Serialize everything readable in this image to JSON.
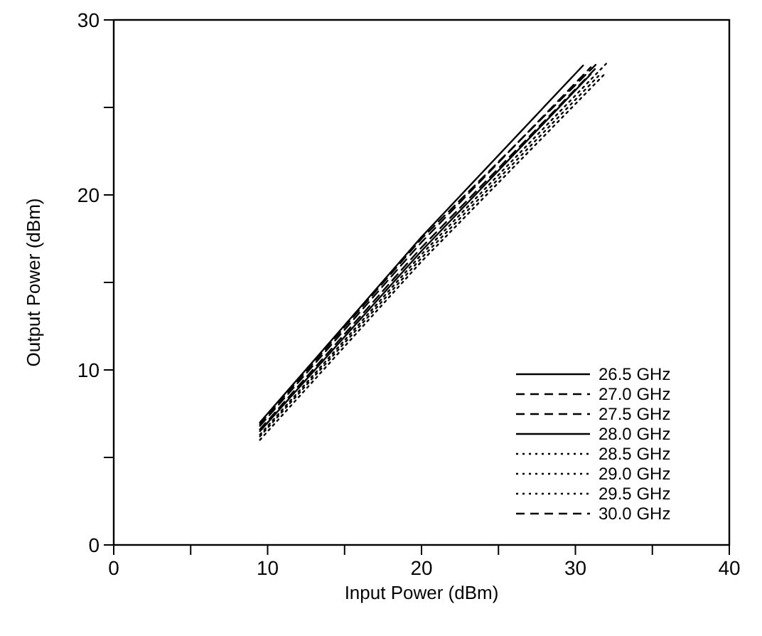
{
  "chart_data": {
    "type": "line",
    "xlabel": "Input Power (dBm)",
    "ylabel": "Output Power (dBm)",
    "xlim": [
      0,
      40
    ],
    "ylim": [
      0,
      30
    ],
    "xticks": [
      0,
      {
        "value": 5,
        "label": null
      },
      10,
      {
        "value": 15,
        "label": null
      },
      20,
      {
        "value": 25,
        "label": null
      },
      30,
      {
        "value": 35,
        "label": null
      },
      40
    ],
    "yticks": [
      0,
      {
        "value": 5,
        "label": null
      },
      10,
      {
        "value": 15,
        "label": null
      },
      20,
      {
        "value": 25,
        "label": null
      },
      30
    ],
    "grid": false,
    "legend": "bottom right",
    "marker": "none",
    "series": [
      {
        "name": "26.5 GHz",
        "color": "#000000",
        "line_style": "solid",
        "x": [
          9.5,
          20,
          30.5
        ],
        "values": [
          7.0,
          17.6,
          27.4
        ]
      },
      {
        "name": "27.0 GHz",
        "color": "#000000",
        "line_style": "dashed",
        "x": [
          9.5,
          20,
          31
        ],
        "values": [
          6.8,
          17.3,
          27.3
        ]
      },
      {
        "name": "27.5 GHz",
        "color": "#000000",
        "line_style": "dashed",
        "x": [
          9.5,
          20,
          31.5
        ],
        "values": [
          6.6,
          17.0,
          27.4
        ]
      },
      {
        "name": "28.0 GHz",
        "color": "#000000",
        "line_style": "solid",
        "x": [
          9.5,
          20,
          31
        ],
        "values": [
          6.5,
          16.8,
          26.9
        ]
      },
      {
        "name": "28.5 GHz",
        "color": "#000000",
        "line_style": "dotted",
        "x": [
          9.5,
          20,
          32
        ],
        "values": [
          6.3,
          16.6,
          27.5
        ]
      },
      {
        "name": "29.0 GHz",
        "color": "#000000",
        "line_style": "dotted",
        "x": [
          9.5,
          20,
          31.5
        ],
        "values": [
          6.2,
          16.4,
          26.8
        ]
      },
      {
        "name": "29.5 GHz",
        "color": "#000000",
        "line_style": "dotted",
        "x": [
          9.5,
          20,
          32
        ],
        "values": [
          6.0,
          16.2,
          27.0
        ]
      },
      {
        "name": "30.0 GHz",
        "color": "#000000",
        "line_style": "dashed",
        "x": [
          9.5,
          20,
          31.5
        ],
        "values": [
          6.9,
          17.5,
          27.6
        ]
      }
    ]
  }
}
